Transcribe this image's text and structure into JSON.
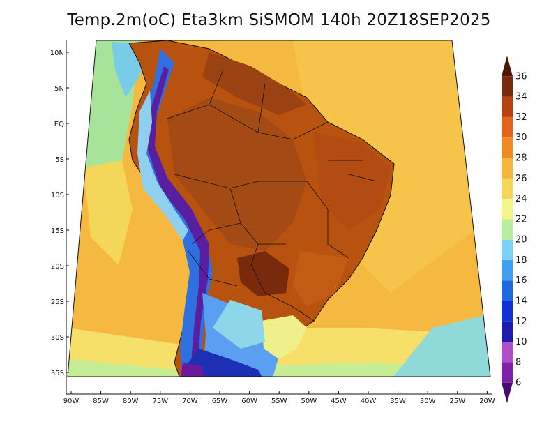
{
  "title": "Temp.2m(oC) Eta3km SiSMOM 140h 20Z18SEP2025",
  "map": {
    "variable": "2 m air temperature",
    "units": "oC",
    "lat_labels": [
      "10N",
      "5N",
      "EQ",
      "5S",
      "10S",
      "15S",
      "20S",
      "25S",
      "30S",
      "35S"
    ],
    "lon_labels": [
      "90W",
      "85W",
      "80W",
      "75W",
      "70W",
      "65W",
      "60W",
      "55W",
      "50W",
      "45W",
      "40W",
      "35W",
      "30W",
      "25W",
      "20W"
    ]
  },
  "colorbar": {
    "levels": [
      "6",
      "8",
      "10",
      "12",
      "14",
      "16",
      "18",
      "20",
      "22",
      "24",
      "26",
      "28",
      "30",
      "32",
      "34",
      "36"
    ],
    "colors": [
      "#4a0a6b",
      "#7d1fa8",
      "#b04dc9",
      "#1c1cb0",
      "#1030d8",
      "#1c6ae0",
      "#3f9ff0",
      "#7ccff5",
      "#b9ee9a",
      "#f2f58a",
      "#f7d65a",
      "#f5b43a",
      "#f08a25",
      "#e0651a",
      "#b8420f",
      "#7a2a0c",
      "#4a1606"
    ]
  }
}
